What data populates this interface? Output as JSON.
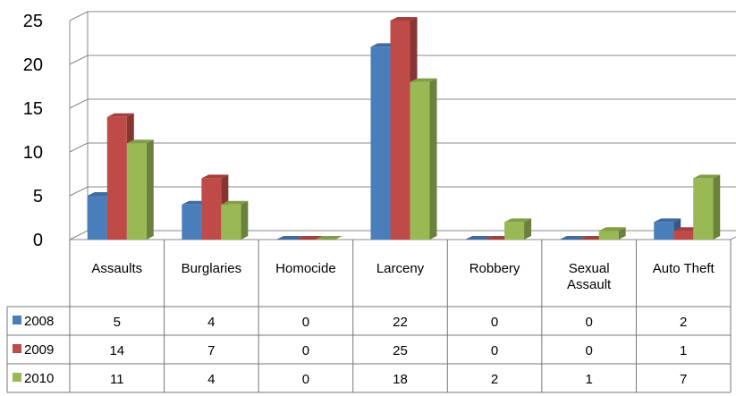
{
  "chart_data": {
    "type": "bar",
    "categories": [
      "Assaults",
      "Burglaries",
      "Homocide",
      "Larceny",
      "Robbery",
      "Sexual Assault",
      "Auto Theft"
    ],
    "category_lines": [
      [
        "Assaults"
      ],
      [
        "Burglaries"
      ],
      [
        "Homocide"
      ],
      [
        "Larceny"
      ],
      [
        "Robbery"
      ],
      [
        "Sexual",
        "Assault"
      ],
      [
        "Auto Theft"
      ]
    ],
    "series": [
      {
        "name": "2008",
        "color": "#4a7ebb",
        "values": [
          5,
          4,
          0,
          22,
          0,
          0,
          2
        ]
      },
      {
        "name": "2009",
        "color": "#be4b48",
        "values": [
          14,
          7,
          0,
          25,
          0,
          0,
          1
        ]
      },
      {
        "name": "2010",
        "color": "#98b954",
        "values": [
          11,
          4,
          0,
          18,
          2,
          1,
          7
        ]
      }
    ],
    "y_ticks": [
      "0",
      "5",
      "10",
      "15",
      "20",
      "25"
    ],
    "ylim": [
      0,
      25
    ],
    "grid": true,
    "legend": "data-table-left",
    "style": "3d-clustered-column-with-data-table"
  }
}
